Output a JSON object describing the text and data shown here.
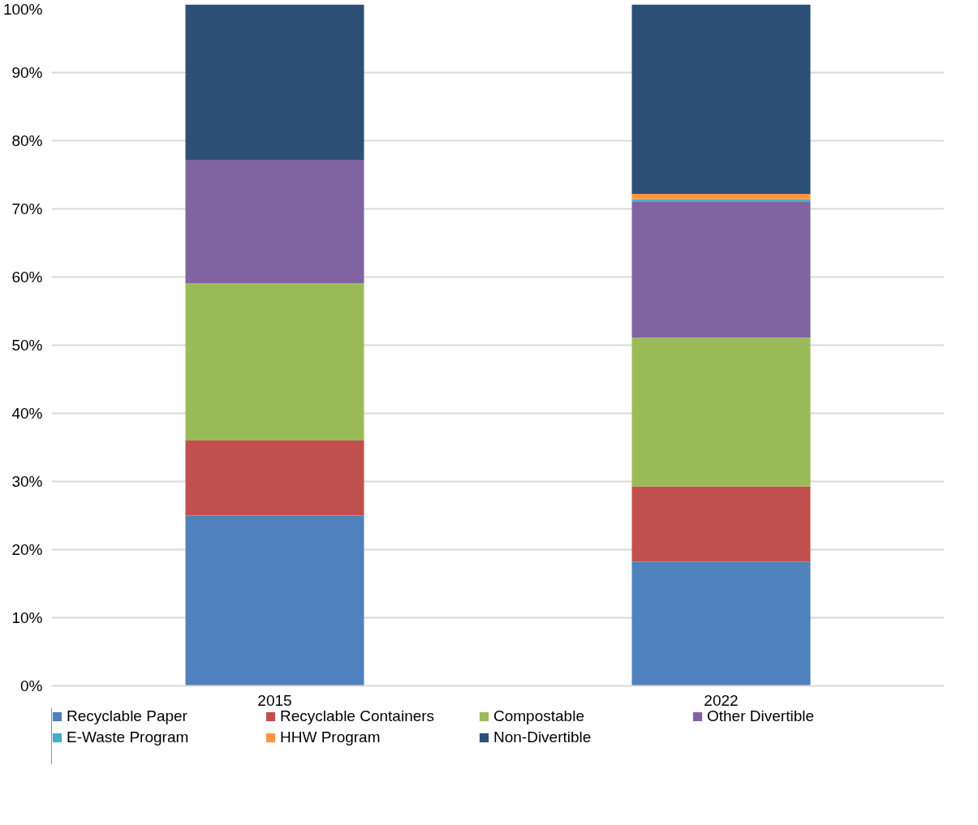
{
  "chart_data": {
    "type": "bar",
    "stacked": true,
    "categories": [
      "2015",
      "2022"
    ],
    "series": [
      {
        "name": "Recyclable Paper",
        "color": "#4f81bd",
        "values": [
          25.0,
          18.2
        ]
      },
      {
        "name": "Recyclable Containers",
        "color": "#c0504d",
        "values": [
          11.0,
          11.1
        ]
      },
      {
        "name": "Compostable",
        "color": "#9bbb59",
        "values": [
          23.1,
          21.8
        ]
      },
      {
        "name": "Other Divertible",
        "color": "#8064a2",
        "values": [
          18.1,
          19.9
        ]
      },
      {
        "name": "E-Waste Program",
        "color": "#4bacc6",
        "values": [
          0,
          0.4
        ]
      },
      {
        "name": "HHW Program",
        "color": "#f79646",
        "values": [
          0,
          0.8
        ]
      },
      {
        "name": "Non-Divertible",
        "color": "#2c4f75",
        "values": [
          22.8,
          27.8
        ]
      }
    ],
    "ylim": [
      0,
      100
    ],
    "yticks": [
      {
        "value": 0,
        "label": "0%"
      },
      {
        "value": 10,
        "label": "10%"
      },
      {
        "value": 20,
        "label": "20%"
      },
      {
        "value": 30,
        "label": "30%"
      },
      {
        "value": 40,
        "label": "40%"
      },
      {
        "value": 50,
        "label": "50%"
      },
      {
        "value": 60,
        "label": "60%"
      },
      {
        "value": 70,
        "label": "70%"
      },
      {
        "value": 80,
        "label": "80%"
      },
      {
        "value": 90,
        "label": "90%"
      },
      {
        "value": 100,
        "label": "100%"
      }
    ],
    "grid": "y",
    "legend": "bottom"
  }
}
